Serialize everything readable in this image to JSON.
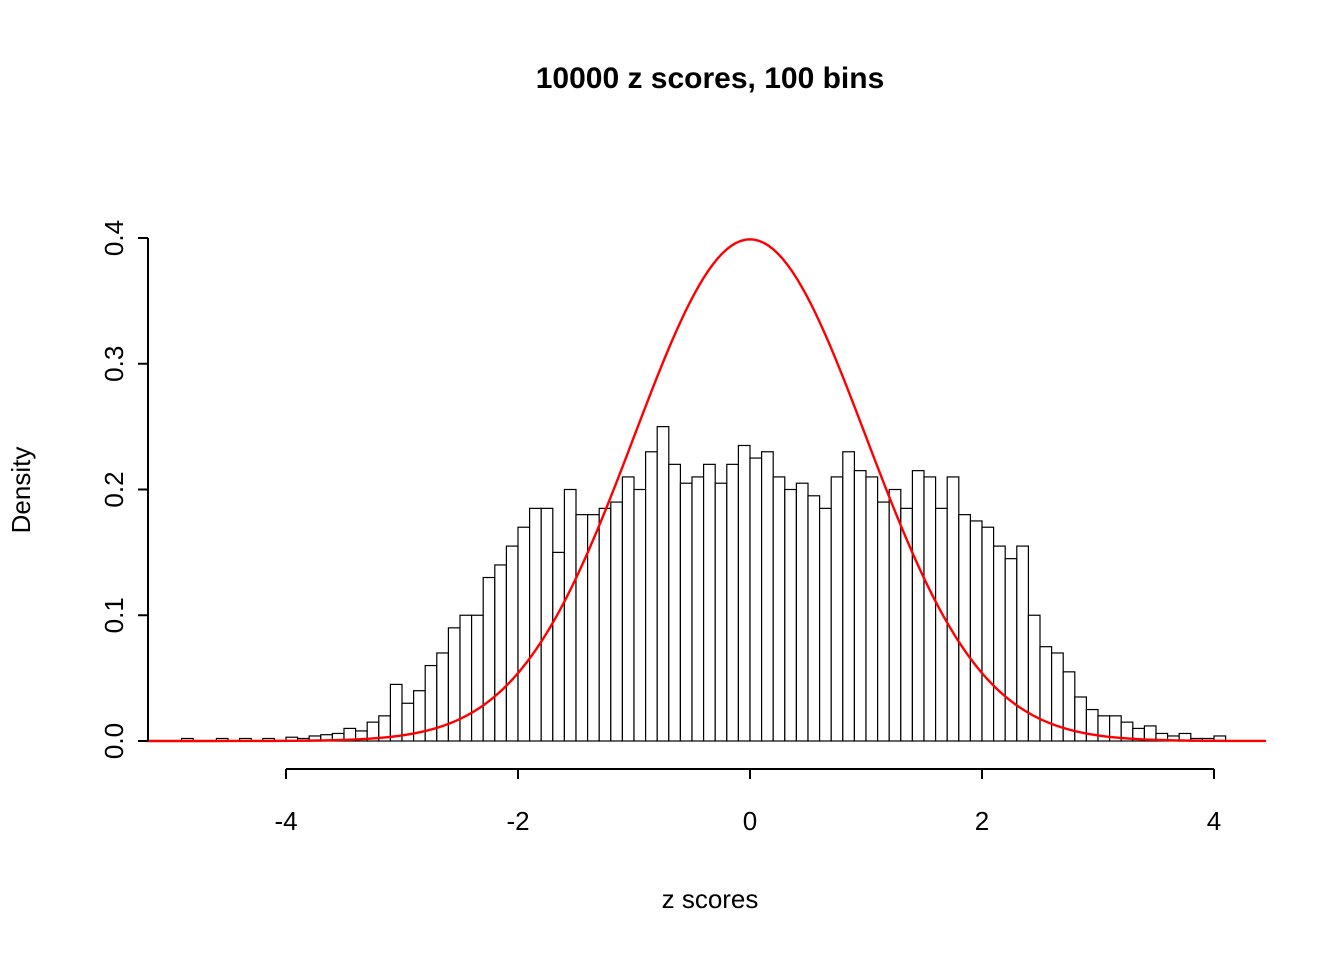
{
  "chart_data": {
    "type": "bar",
    "subtype": "histogram-with-density-curve",
    "title": "10000 z scores, 100 bins",
    "xlabel": "z scores",
    "ylabel": "Density",
    "bin_start": -4.9,
    "bin_width": 0.1,
    "densities": [
      0.002,
      0,
      0,
      0.002,
      0,
      0.002,
      0,
      0.002,
      0,
      0.003,
      0.002,
      0.004,
      0.005,
      0.006,
      0.01,
      0.008,
      0.015,
      0.02,
      0.045,
      0.03,
      0.04,
      0.06,
      0.07,
      0.09,
      0.1,
      0.1,
      0.13,
      0.14,
      0.155,
      0.17,
      0.185,
      0.185,
      0.15,
      0.2,
      0.18,
      0.18,
      0.185,
      0.19,
      0.21,
      0.2,
      0.23,
      0.25,
      0.22,
      0.205,
      0.21,
      0.22,
      0.205,
      0.22,
      0.235,
      0.225,
      0.23,
      0.21,
      0.2,
      0.205,
      0.195,
      0.185,
      0.21,
      0.23,
      0.215,
      0.21,
      0.19,
      0.2,
      0.185,
      0.215,
      0.21,
      0.185,
      0.21,
      0.18,
      0.175,
      0.17,
      0.155,
      0.145,
      0.155,
      0.1,
      0.075,
      0.07,
      0.055,
      0.035,
      0.025,
      0.02,
      0.02,
      0.015,
      0.01,
      0.012,
      0.006,
      0.004,
      0.006,
      0.002,
      0.002,
      0.004
    ],
    "x_ticks": [
      -4,
      -2,
      0,
      2,
      4
    ],
    "y_ticks": [
      0.0,
      0.1,
      0.2,
      0.3,
      0.4
    ],
    "y_tick_labels": [
      "0.0",
      "0.1",
      "0.2",
      "0.3",
      "0.4"
    ],
    "x_tick_labels": [
      "-4",
      "-2",
      "0",
      "2",
      "4"
    ],
    "xlim": [
      -5.2,
      4.45
    ],
    "ylim": [
      0,
      0.4
    ],
    "bar_fill": "#FFFFFF",
    "bar_stroke": "#000000",
    "curve": {
      "name": "standard-normal-density",
      "mean": 0,
      "sd": 1,
      "peak_density": 0.3989,
      "color": "#FF0000",
      "x_range": [
        -5.2,
        4.45
      ]
    },
    "legend": "none",
    "grid": "off"
  }
}
